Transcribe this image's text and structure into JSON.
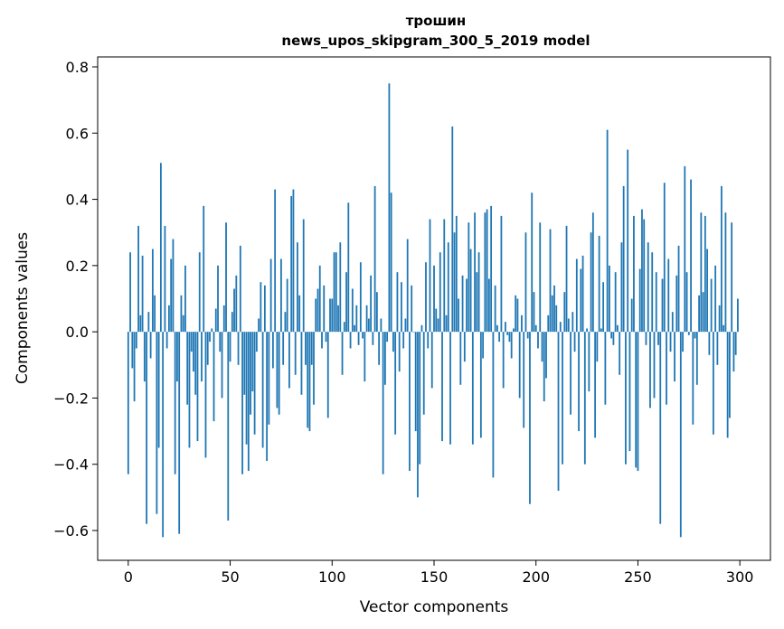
{
  "chart_data": {
    "type": "bar",
    "title_line1": "трошин",
    "title_line2": "news_upos_skipgram_300_5_2019 model",
    "xlabel": "Vector components",
    "ylabel": "Components values",
    "xlim": [
      -15,
      315
    ],
    "ylim": [
      -0.69,
      0.83
    ],
    "xticks": [
      0,
      50,
      100,
      150,
      200,
      250,
      300
    ],
    "xtick_labels": [
      "0",
      "50",
      "100",
      "150",
      "200",
      "250",
      "300"
    ],
    "yticks": [
      -0.6,
      -0.4,
      -0.2,
      0.0,
      0.2,
      0.4,
      0.6,
      0.8
    ],
    "ytick_labels": [
      "−0.6",
      "−0.4",
      "−0.2",
      "0.0",
      "0.2",
      "0.4",
      "0.6",
      "0.8"
    ],
    "bar_color": "#1f77b4",
    "grid": false,
    "values": [
      -0.43,
      0.24,
      -0.11,
      -0.21,
      -0.05,
      0.32,
      0.05,
      0.23,
      -0.15,
      -0.58,
      0.06,
      -0.08,
      0.25,
      0.11,
      -0.55,
      -0.35,
      0.51,
      -0.62,
      0.32,
      -0.05,
      0.08,
      0.22,
      0.28,
      -0.43,
      -0.15,
      -0.61,
      0.11,
      0.05,
      0.2,
      -0.22,
      -0.35,
      -0.06,
      -0.12,
      -0.19,
      -0.33,
      0.24,
      -0.15,
      0.38,
      -0.38,
      -0.1,
      -0.03,
      0.01,
      -0.27,
      0.07,
      0.2,
      -0.06,
      -0.2,
      0.08,
      0.33,
      -0.57,
      -0.09,
      0.06,
      0.13,
      0.17,
      -0.1,
      0.26,
      -0.43,
      -0.19,
      -0.34,
      -0.42,
      -0.25,
      -0.18,
      -0.31,
      -0.06,
      0.04,
      0.15,
      -0.35,
      0.14,
      -0.39,
      -0.28,
      0.22,
      -0.11,
      0.43,
      -0.23,
      -0.25,
      0.22,
      -0.1,
      0.06,
      0.16,
      -0.17,
      0.41,
      0.43,
      -0.13,
      0.27,
      0.11,
      -0.19,
      0.34,
      -0.1,
      -0.29,
      -0.3,
      -0.1,
      -0.22,
      0.1,
      0.13,
      0.2,
      -0.05,
      0.14,
      -0.03,
      -0.26,
      0.1,
      0.1,
      0.24,
      0.24,
      0.08,
      0.27,
      -0.13,
      0.03,
      0.18,
      0.39,
      -0.05,
      0.13,
      0.02,
      0.08,
      -0.04,
      0.21,
      -0.02,
      -0.15,
      0.08,
      0.04,
      0.17,
      -0.04,
      0.44,
      0.12,
      -0.1,
      0.04,
      -0.43,
      -0.16,
      -0.03,
      0.75,
      0.42,
      -0.06,
      -0.31,
      0.18,
      -0.12,
      0.15,
      -0.05,
      0.04,
      0.28,
      -0.42,
      0.14,
      0.0,
      -0.3,
      -0.5,
      -0.4,
      0.02,
      -0.25,
      0.21,
      -0.05,
      0.34,
      -0.17,
      0.2,
      0.07,
      0.04,
      0.24,
      -0.33,
      0.34,
      0.05,
      0.27,
      -0.34,
      0.62,
      0.3,
      0.35,
      0.1,
      -0.16,
      0.17,
      -0.09,
      0.16,
      0.33,
      0.25,
      -0.34,
      0.36,
      0.18,
      0.24,
      -0.32,
      -0.08,
      0.36,
      0.37,
      0.16,
      0.38,
      -0.44,
      0.14,
      0.02,
      -0.03,
      0.35,
      -0.17,
      0.03,
      -0.01,
      -0.03,
      -0.08,
      0.01,
      0.11,
      0.1,
      -0.2,
      0.05,
      -0.29,
      0.3,
      -0.02,
      -0.52,
      0.42,
      0.12,
      0.02,
      -0.05,
      0.33,
      -0.09,
      -0.21,
      -0.14,
      0.05,
      0.31,
      0.11,
      0.14,
      0.08,
      -0.48,
      0.03,
      -0.4,
      0.12,
      0.32,
      0.04,
      -0.25,
      0.06,
      -0.06,
      0.22,
      -0.3,
      0.19,
      0.23,
      -0.4,
      0.01,
      -0.18,
      0.3,
      0.36,
      -0.32,
      -0.09,
      0.29,
      0.01,
      0.15,
      -0.22,
      0.61,
      0.2,
      -0.02,
      -0.04,
      0.18,
      0.02,
      -0.13,
      0.27,
      0.44,
      -0.4,
      0.55,
      -0.36,
      0.1,
      0.35,
      -0.41,
      -0.42,
      0.19,
      0.37,
      0.34,
      -0.04,
      0.27,
      -0.23,
      0.24,
      -0.2,
      0.18,
      -0.04,
      -0.58,
      0.16,
      0.45,
      -0.22,
      0.22,
      -0.06,
      0.06,
      -0.15,
      0.17,
      0.26,
      -0.62,
      -0.06,
      0.5,
      0.18,
      -0.01,
      0.46,
      -0.28,
      -0.02,
      -0.16,
      0.11,
      0.36,
      0.12,
      0.35,
      0.25,
      -0.07,
      0.16,
      -0.31,
      0.2,
      -0.1,
      0.08,
      0.44,
      0.02,
      0.36,
      -0.32,
      -0.26,
      0.33,
      -0.12,
      -0.07,
      0.1
    ]
  }
}
